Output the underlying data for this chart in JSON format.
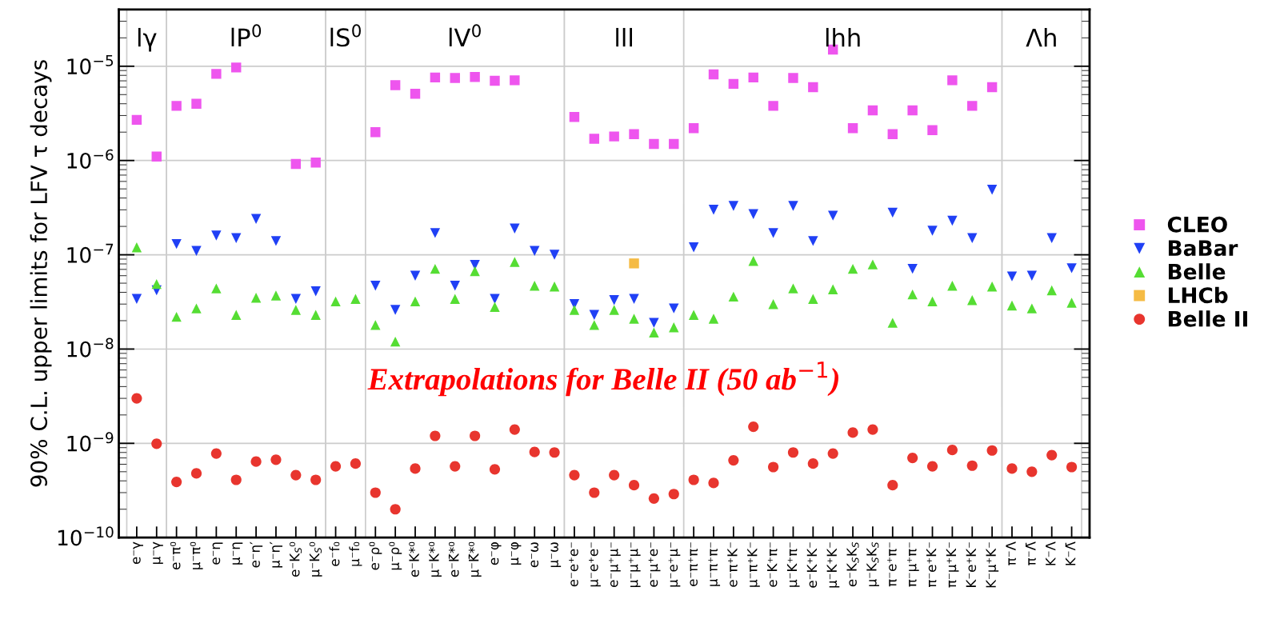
{
  "chart_data": {
    "type": "scatter",
    "ylabel": "90% C.L. upper limits for LFV τ decays",
    "categories": [
      "e⁻γ",
      "μ⁻γ",
      "e⁻π⁰",
      "μ⁻π⁰",
      "e⁻η",
      "μ⁻η",
      "e⁻η′",
      "μ⁻η′",
      "e⁻K$_{S}$⁰",
      "μ⁻K$_{S}$⁰",
      "e⁻f₀",
      "μ⁻f₀",
      "e⁻ρ⁰",
      "μ⁻ρ⁰",
      "e⁻K*⁰",
      "μ⁻K*⁰",
      "e⁻K̄*⁰",
      "μ⁻K̄*⁰",
      "e⁻φ",
      "μ⁻φ",
      "e⁻ω",
      "μ⁻ω",
      "e⁻e⁺e⁻",
      "μ⁻e⁺e⁻",
      "e⁻μ⁺μ⁻",
      "μ⁻μ⁺μ⁻",
      "e⁻μ⁺e⁻",
      "μ⁻e⁺μ⁻",
      "e⁻π⁺π⁻",
      "μ⁻π⁺π⁻",
      "e⁻π⁺K⁻",
      "μ⁻π⁺K⁻",
      "e⁻K⁺π⁻",
      "μ⁻K⁺π⁻",
      "e⁻K⁺K⁻",
      "μ⁻K⁺K⁻",
      "e⁻K$_{S}$K$_{S}$",
      "μ⁻K$_{S}$K$_{S}$",
      "π⁻e⁺π⁻",
      "π⁻μ⁺π⁻",
      "π⁻e⁺K⁻",
      "π⁻μ⁺K⁻",
      "K⁻e⁺K⁻",
      "K⁻μ⁺K⁻",
      "π⁻Λ",
      "π⁻Λ̄",
      "K⁻Λ",
      "K⁻Λ̄"
    ],
    "series": [
      {
        "name": "CLEO",
        "color": "#ee55ee",
        "marker": "square",
        "values": [
          2.7e-06,
          1.1e-06,
          3.8e-06,
          4e-06,
          8.3e-06,
          9.7e-06,
          null,
          null,
          9.2e-07,
          9.5e-07,
          null,
          null,
          2e-06,
          6.3e-06,
          5.1e-06,
          7.6e-06,
          7.5e-06,
          7.7e-06,
          7e-06,
          7.1e-06,
          null,
          null,
          2.9e-06,
          1.7e-06,
          1.8e-06,
          1.9e-06,
          1.5e-06,
          1.5e-06,
          2.2e-06,
          8.2e-06,
          6.5e-06,
          7.6e-06,
          3.8e-06,
          7.5e-06,
          6e-06,
          1.5e-05,
          2.2e-06,
          3.4e-06,
          1.9e-06,
          3.4e-06,
          2.1e-06,
          7.1e-06,
          3.8e-06,
          6e-06,
          null,
          null,
          null,
          null
        ]
      },
      {
        "name": "BaBar",
        "color": "#2040f5",
        "marker": "triangle_down",
        "values": [
          3.4e-08,
          4.2e-08,
          1.3e-07,
          1.1e-07,
          1.6e-07,
          1.5e-07,
          2.4e-07,
          1.4e-07,
          3.4e-08,
          4.1e-08,
          null,
          null,
          4.7e-08,
          2.6e-08,
          6e-08,
          1.7e-07,
          4.7e-08,
          7.8e-08,
          3.4e-08,
          1.9e-07,
          1.1e-07,
          1e-07,
          3e-08,
          2.3e-08,
          3.3e-08,
          3.4e-08,
          1.9e-08,
          2.7e-08,
          1.2e-07,
          3e-07,
          3.3e-07,
          2.7e-07,
          1.7e-07,
          3.3e-07,
          1.4e-07,
          2.6e-07,
          null,
          null,
          2.8e-07,
          7.1e-08,
          1.8e-07,
          2.3e-07,
          1.5e-07,
          4.9e-07,
          5.9e-08,
          6e-08,
          1.5e-07,
          7.2e-08
        ]
      },
      {
        "name": "Belle",
        "color": "#55dd33",
        "marker": "triangle",
        "values": [
          1.2e-07,
          4.9e-08,
          2.2e-08,
          2.7e-08,
          4.4e-08,
          2.3e-08,
          3.5e-08,
          3.7e-08,
          2.6e-08,
          2.3e-08,
          3.2e-08,
          3.4e-08,
          1.8e-08,
          1.2e-08,
          3.2e-08,
          7.1e-08,
          3.4e-08,
          6.7e-08,
          2.8e-08,
          8.4e-08,
          4.7e-08,
          4.6e-08,
          2.6e-08,
          1.8e-08,
          2.6e-08,
          2.1e-08,
          1.5e-08,
          1.7e-08,
          2.3e-08,
          2.1e-08,
          3.6e-08,
          8.6e-08,
          3e-08,
          4.4e-08,
          3.4e-08,
          4.3e-08,
          7.1e-08,
          7.9e-08,
          1.9e-08,
          3.8e-08,
          3.2e-08,
          4.7e-08,
          3.3e-08,
          4.6e-08,
          2.9e-08,
          2.7e-08,
          4.2e-08,
          3.1e-08
        ]
      },
      {
        "name": "LHCb",
        "color": "#f5bb44",
        "marker": "square",
        "values": [
          null,
          null,
          null,
          null,
          null,
          null,
          null,
          null,
          null,
          null,
          null,
          null,
          null,
          null,
          null,
          null,
          null,
          null,
          null,
          null,
          null,
          null,
          null,
          null,
          null,
          8.1e-08,
          null,
          null,
          null,
          null,
          null,
          null,
          null,
          null,
          null,
          null,
          null,
          null,
          null,
          null,
          null,
          null,
          null,
          null,
          null,
          null,
          null,
          null
        ]
      },
      {
        "name": "Belle II",
        "color": "#e8352e",
        "marker": "circle",
        "values": [
          3e-09,
          9.9e-10,
          3.9e-10,
          4.8e-10,
          7.8e-10,
          4.1e-10,
          6.4e-10,
          6.7e-10,
          4.6e-10,
          4.1e-10,
          5.7e-10,
          6.1e-10,
          3e-10,
          2e-10,
          5.4e-10,
          1.2e-09,
          5.7e-10,
          1.2e-09,
          5.3e-10,
          1.4e-09,
          8.1e-10,
          8e-10,
          4.6e-10,
          3e-10,
          4.6e-10,
          3.6e-10,
          2.6e-10,
          2.9e-10,
          4.1e-10,
          3.8e-10,
          6.6e-10,
          1.5e-09,
          5.6e-10,
          8e-10,
          6.1e-10,
          7.8e-10,
          1.3e-09,
          1.4e-09,
          3.6e-10,
          7e-10,
          5.7e-10,
          8.5e-10,
          5.8e-10,
          8.4e-10,
          5.4e-10,
          5e-10,
          7.5e-10,
          5.6e-10
        ]
      }
    ],
    "log": "y",
    "ylim": [
      1e-10,
      4e-05
    ],
    "yticks": [
      {
        "value": 1e-10,
        "label": "10$^{−10}$"
      },
      {
        "value": 1e-09,
        "label": "10$^{−9}$"
      },
      {
        "value": 1e-08,
        "label": "10$^{−8}$"
      },
      {
        "value": 1e-07,
        "label": "10$^{−7}$"
      },
      {
        "value": 1e-06,
        "label": "10$^{−6}$"
      },
      {
        "value": 1e-05,
        "label": "10$^{−5}$"
      }
    ],
    "grid": "y",
    "legend": "right",
    "bands": [
      {
        "axis": "x",
        "from": "e⁻γ",
        "to": "μ⁻γ",
        "label": "lγ",
        "color": "#ffffff"
      },
      {
        "axis": "x",
        "from": "e⁻π⁰",
        "to": "μ⁻K$_{S}$⁰",
        "label": "lP$^{0}$",
        "color": "#ffffff"
      },
      {
        "axis": "x",
        "from": "e⁻f₀",
        "to": "μ⁻f₀",
        "label": "lS$^{0}$",
        "color": "#ffffff"
      },
      {
        "axis": "x",
        "from": "e⁻ρ⁰",
        "to": "μ⁻ω",
        "label": "lV$^{0}$",
        "color": "#ffffff"
      },
      {
        "axis": "x",
        "from": "e⁻e⁺e⁻",
        "to": "μ⁻e⁺μ⁻",
        "label": "lll",
        "color": "#ffffff"
      },
      {
        "axis": "x",
        "from": "e⁻π⁺π⁻",
        "to": "K⁻μ⁺K⁻",
        "label": "lhh",
        "color": "#ffffff"
      },
      {
        "axis": "x",
        "from": "π⁻Λ",
        "to": "K⁻Λ̄",
        "label": "Λh",
        "color": "#ffffff"
      }
    ],
    "annotations": [
      "Extrapolations for Belle II (50 ab$^{−1}$)"
    ]
  }
}
